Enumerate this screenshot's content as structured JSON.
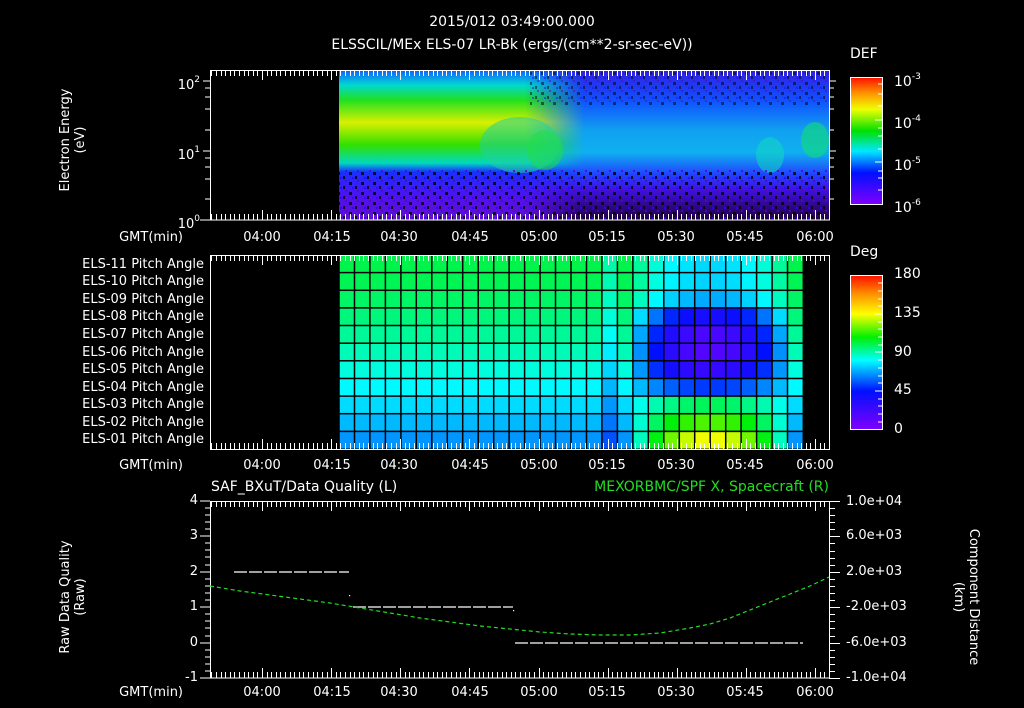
{
  "header": {
    "timestamp": "2015/012 03:49:00.000",
    "title": "ELSSCIL/MEx ELS-07 LR-Bk  (ergs/(cm**2-sr-sec-eV))"
  },
  "time_axis": {
    "label": "GMT(min)",
    "ticks": [
      "04:00",
      "04:15",
      "04:30",
      "04:45",
      "05:00",
      "05:15",
      "05:30",
      "05:45",
      "06:00"
    ]
  },
  "colors": {
    "background": "#000000",
    "axes": "#ffffff",
    "right_axis_series": "#22dd22"
  },
  "chart_data": [
    {
      "type": "heatmap",
      "title": "ELSSCIL/MEx ELS-07 LR-Bk  (ergs/(cm**2-sr-sec-eV))",
      "ylabel": "Electron Energy",
      "yunits": "(eV)",
      "xlabel": "GMT(min)",
      "yscale": "log",
      "ylim": [
        1,
        150
      ],
      "yticks": [
        "10^0",
        "10^1",
        "10^2"
      ],
      "x_range": [
        "03:49",
        "06:03"
      ],
      "data_start": "04:17",
      "colorbar": {
        "label": "DEF",
        "scale": "log",
        "range": [
          1e-06,
          0.001
        ],
        "ticks": [
          "10^-3",
          "10^-4",
          "10^-5",
          "10^-6"
        ]
      },
      "description": "Strong flux (~1e-4) between ~10-60 eV from 04:17 to ~04:50, weakening to ~1e-5 after 05:00 with patchy enhancements near 05:45 and 06:00; low flux/noise below ~5 eV"
    },
    {
      "type": "heatmap",
      "title": "ELS Pitch Angles",
      "ylabel": "",
      "rows": [
        "ELS-11 Pitch Angle",
        "ELS-10 Pitch Angle",
        "ELS-09 Pitch Angle",
        "ELS-08 Pitch Angle",
        "ELS-07 Pitch Angle",
        "ELS-06 Pitch Angle",
        "ELS-05 Pitch Angle",
        "ELS-04 Pitch Angle",
        "ELS-03 Pitch Angle",
        "ELS-02 Pitch Angle",
        "ELS-01 Pitch Angle"
      ],
      "xlabel": "GMT(min)",
      "data_start": "04:17",
      "data_end": "05:57",
      "colorbar": {
        "label": "Deg",
        "range": [
          0,
          180
        ],
        "ticks": [
          "180",
          "135",
          "90",
          "45",
          "0"
        ]
      },
      "description": "Upper sensors ~90-100 deg (green), lower sensors ~60 deg (cyan) until ~05:20; from 05:22-05:50 central rows (ELS-06..09) drop to ~20-30 deg (blue/violet), bottom row rises to ~130 deg (yellow)"
    },
    {
      "type": "line",
      "title_left": "SAF_BXuT/Data Quality (L)",
      "title_right": "MEXORBMC/SPF X, Spacecraft (R)",
      "ylabel_left": "Raw Data Quality",
      "yunits_left": "(Raw)",
      "ylim_left": [
        -1,
        4
      ],
      "yticks_left": [
        "-1",
        "0",
        "1",
        "2",
        "3",
        "4"
      ],
      "ylabel_right": "Component Distance",
      "yunits_right": "(km)",
      "ylim_right": [
        -10000,
        10000
      ],
      "yticks_right": [
        "1.0e+04",
        "6.0e+03",
        "2.0e+03",
        "-2.0e+03",
        "-6.0e+03",
        "-1.0e+04"
      ],
      "xlabel": "GMT(min)",
      "series": [
        {
          "name": "Data Quality (L)",
          "color": "#ffffff",
          "x": [
            "03:56",
            "04:21",
            "04:22",
            "04:56",
            "04:57",
            "05:58"
          ],
          "values": [
            2,
            2,
            1,
            1,
            0,
            0
          ]
        },
        {
          "name": "SPF X, Spacecraft (R)",
          "color": "#22dd22",
          "x": [
            "03:49",
            "04:00",
            "04:15",
            "04:30",
            "04:45",
            "05:00",
            "05:15",
            "05:30",
            "05:45",
            "06:03"
          ],
          "values": [
            -200,
            -800,
            -1900,
            -3300,
            -4600,
            -5400,
            -5700,
            -5000,
            -2800,
            1100
          ]
        }
      ]
    }
  ],
  "panel1": {
    "ylabel": "Electron Energy",
    "yunits": "(eV)",
    "yticks": [
      {
        "base": "10",
        "exp": "2"
      },
      {
        "base": "10",
        "exp": "1"
      },
      {
        "base": "10",
        "exp": "0"
      }
    ],
    "colorbar_label": "DEF",
    "colorbar_ticks": [
      {
        "base": "10",
        "exp": "-3"
      },
      {
        "base": "10",
        "exp": "-4"
      },
      {
        "base": "10",
        "exp": "-5"
      },
      {
        "base": "10",
        "exp": "-6"
      }
    ]
  },
  "panel2": {
    "rows": [
      "ELS-11 Pitch Angle",
      "ELS-10 Pitch Angle",
      "ELS-09 Pitch Angle",
      "ELS-08 Pitch Angle",
      "ELS-07 Pitch Angle",
      "ELS-06 Pitch Angle",
      "ELS-05 Pitch Angle",
      "ELS-04 Pitch Angle",
      "ELS-03 Pitch Angle",
      "ELS-02 Pitch Angle",
      "ELS-01 Pitch Angle"
    ],
    "colorbar_label": "Deg",
    "colorbar_ticks": [
      "180",
      "135",
      "90",
      "45",
      "0"
    ]
  },
  "panel3": {
    "title_left": "SAF_BXuT/Data Quality (L)",
    "title_right": "MEXORBMC/SPF X, Spacecraft (R)",
    "ylabel_left": "Raw Data Quality",
    "yunits_left": "(Raw)",
    "yticks_left": [
      "4",
      "3",
      "2",
      "1",
      "0",
      "-1"
    ],
    "ylabel_right": "Component Distance",
    "yunits_right": "(km)",
    "yticks_right": [
      "1.0e+04",
      "6.0e+03",
      "2.0e+03",
      "-2.0e+03",
      "-6.0e+03",
      "-1.0e+04"
    ]
  }
}
